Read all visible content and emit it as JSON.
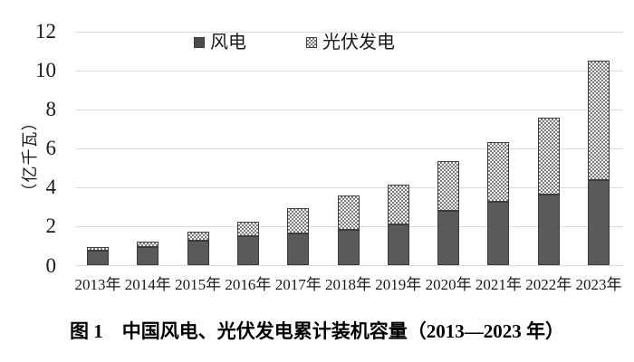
{
  "figure": {
    "caption": "图 1　中国风电、光伏发电累计装机容量（2013—2023 年）"
  },
  "chart_data": {
    "type": "bar",
    "stacked": true,
    "title": "",
    "categories": [
      "2013年",
      "2014年",
      "2015年",
      "2016年",
      "2017年",
      "2018年",
      "2019年",
      "2020年",
      "2021年",
      "2022年",
      "2023年"
    ],
    "series": [
      {
        "name": "风电",
        "values": [
          0.77,
          0.96,
          1.29,
          1.49,
          1.64,
          1.84,
          2.1,
          2.82,
          3.28,
          3.65,
          4.41
        ],
        "fill": "solid",
        "color": "#5a5a5a"
      },
      {
        "name": "光伏发电",
        "values": [
          0.19,
          0.28,
          0.43,
          0.77,
          1.3,
          1.74,
          2.04,
          2.53,
          3.06,
          3.93,
          6.09
        ],
        "fill": "checker-pattern",
        "color": "#f4f4f4",
        "pattern_color": "#7a7a7a"
      }
    ],
    "xlabel": "",
    "ylabel": "（亿千瓦）",
    "ylim": [
      0,
      12
    ],
    "yticks": [
      0,
      2,
      4,
      6,
      8,
      10,
      12
    ],
    "grid": true,
    "gridline_color": "#dcdcdc",
    "bar_border_color": "#3f3f3f",
    "legend_position": "top-center"
  }
}
